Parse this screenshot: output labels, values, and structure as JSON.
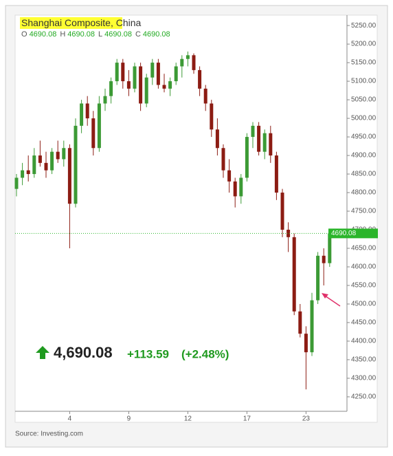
{
  "header": {
    "title": "Shanghai Composite",
    "title_suffix": ", China",
    "ohlc": [
      {
        "label": "O",
        "value": "4690.08"
      },
      {
        "label": "H",
        "value": "4690.08"
      },
      {
        "label": "L",
        "value": "4690.08"
      },
      {
        "label": "C",
        "value": "4690.08"
      }
    ]
  },
  "quote": {
    "price": "4,690.08",
    "change": "+113.59",
    "change_pct": "(+2.48%)"
  },
  "source": "Source:  Investing.com",
  "chart_data": {
    "type": "candlestick",
    "categories": [
      null,
      null,
      null,
      null,
      null,
      null,
      null,
      null,
      null,
      "4",
      null,
      null,
      null,
      null,
      null,
      null,
      null,
      null,
      null,
      "9",
      null,
      null,
      null,
      null,
      null,
      null,
      null,
      null,
      null,
      "12",
      null,
      null,
      null,
      null,
      null,
      null,
      null,
      null,
      null,
      "17",
      null,
      null,
      null,
      null,
      null,
      null,
      null,
      null,
      null,
      "23",
      null,
      null,
      null,
      null
    ],
    "open": [
      4810,
      4840,
      4860,
      4850,
      4900,
      4880,
      4860,
      4910,
      4890,
      4920,
      4770,
      4980,
      5040,
      5000,
      4920,
      5040,
      5060,
      5100,
      5150,
      5100,
      5080,
      5140,
      5040,
      5110,
      5150,
      5090,
      5080,
      5100,
      5140,
      5160,
      5170,
      5130,
      5080,
      5040,
      4970,
      4920,
      4860,
      4830,
      4790,
      4840,
      4950,
      4980,
      4910,
      4960,
      4900,
      4800,
      4700,
      4680,
      4480,
      4420,
      4370,
      4510,
      4630,
      4610
    ],
    "high": [
      4850,
      4880,
      4900,
      4920,
      4940,
      4910,
      4920,
      4940,
      4940,
      4930,
      5000,
      5050,
      5060,
      5020,
      5060,
      5080,
      5110,
      5160,
      5160,
      5130,
      5150,
      5150,
      5120,
      5160,
      5160,
      5120,
      5110,
      5150,
      5170,
      5180,
      5175,
      5140,
      5090,
      5050,
      5000,
      4930,
      4890,
      4840,
      4850,
      4960,
      4990,
      4990,
      4970,
      4980,
      4910,
      4810,
      4720,
      4690,
      4500,
      4440,
      4530,
      4640,
      4650,
      4700
    ],
    "low": [
      4790,
      4820,
      4830,
      4840,
      4870,
      4840,
      4850,
      4880,
      4870,
      4650,
      4760,
      4960,
      4980,
      4900,
      4910,
      5020,
      5040,
      5090,
      5080,
      5060,
      5070,
      5020,
      5030,
      5090,
      5080,
      5070,
      5060,
      5090,
      5110,
      5140,
      5120,
      5060,
      5020,
      4950,
      4900,
      4840,
      4800,
      4760,
      4770,
      4830,
      4920,
      4900,
      4890,
      4880,
      4780,
      4680,
      4640,
      4470,
      4410,
      4270,
      4360,
      4500,
      4550,
      4600
    ],
    "close": [
      4840,
      4860,
      4850,
      4900,
      4880,
      4860,
      4910,
      4890,
      4920,
      4770,
      4980,
      5040,
      5000,
      4920,
      5040,
      5060,
      5100,
      5150,
      5100,
      5080,
      5140,
      5040,
      5110,
      5150,
      5090,
      5080,
      5100,
      5140,
      5160,
      5170,
      5130,
      5080,
      5040,
      4970,
      4920,
      4860,
      4830,
      4790,
      4840,
      4950,
      4980,
      4910,
      4960,
      4900,
      4800,
      4700,
      4680,
      4480,
      4420,
      4370,
      4510,
      4630,
      4610,
      4690
    ],
    "up_color": "#3c9a35",
    "down_color": "#8c1c13",
    "last_value": 4690.08,
    "last_color": "#2bb52b",
    "ylim": [
      4211,
      5278
    ],
    "yticks": [
      {
        "value": 4250,
        "label": "4250.00"
      },
      {
        "value": 4300,
        "label": "4300.00"
      },
      {
        "value": 4350,
        "label": "4350.00"
      },
      {
        "value": 4400,
        "label": "4400.00"
      },
      {
        "value": 4450,
        "label": "4450.00"
      },
      {
        "value": 4500,
        "label": "4500.00"
      },
      {
        "value": 4550,
        "label": "4550.00"
      },
      {
        "value": 4600,
        "label": "4600.00"
      },
      {
        "value": 4650,
        "label": "4650.00"
      },
      {
        "value": 4700,
        "label": "4700.00"
      },
      {
        "value": 4750,
        "label": "4750.00"
      },
      {
        "value": 4800,
        "label": "4800.00"
      },
      {
        "value": 4850,
        "label": "4850.00"
      },
      {
        "value": 4900,
        "label": "4900.00"
      },
      {
        "value": 4950,
        "label": "4950.00"
      },
      {
        "value": 5000,
        "label": "5000.00"
      },
      {
        "value": 5050,
        "label": "5050.00"
      },
      {
        "value": 5100,
        "label": "5100.00"
      },
      {
        "value": 5150,
        "label": "5150.00"
      },
      {
        "value": 5200,
        "label": "5200.00"
      },
      {
        "value": 5250,
        "label": "5250.00"
      }
    ]
  }
}
